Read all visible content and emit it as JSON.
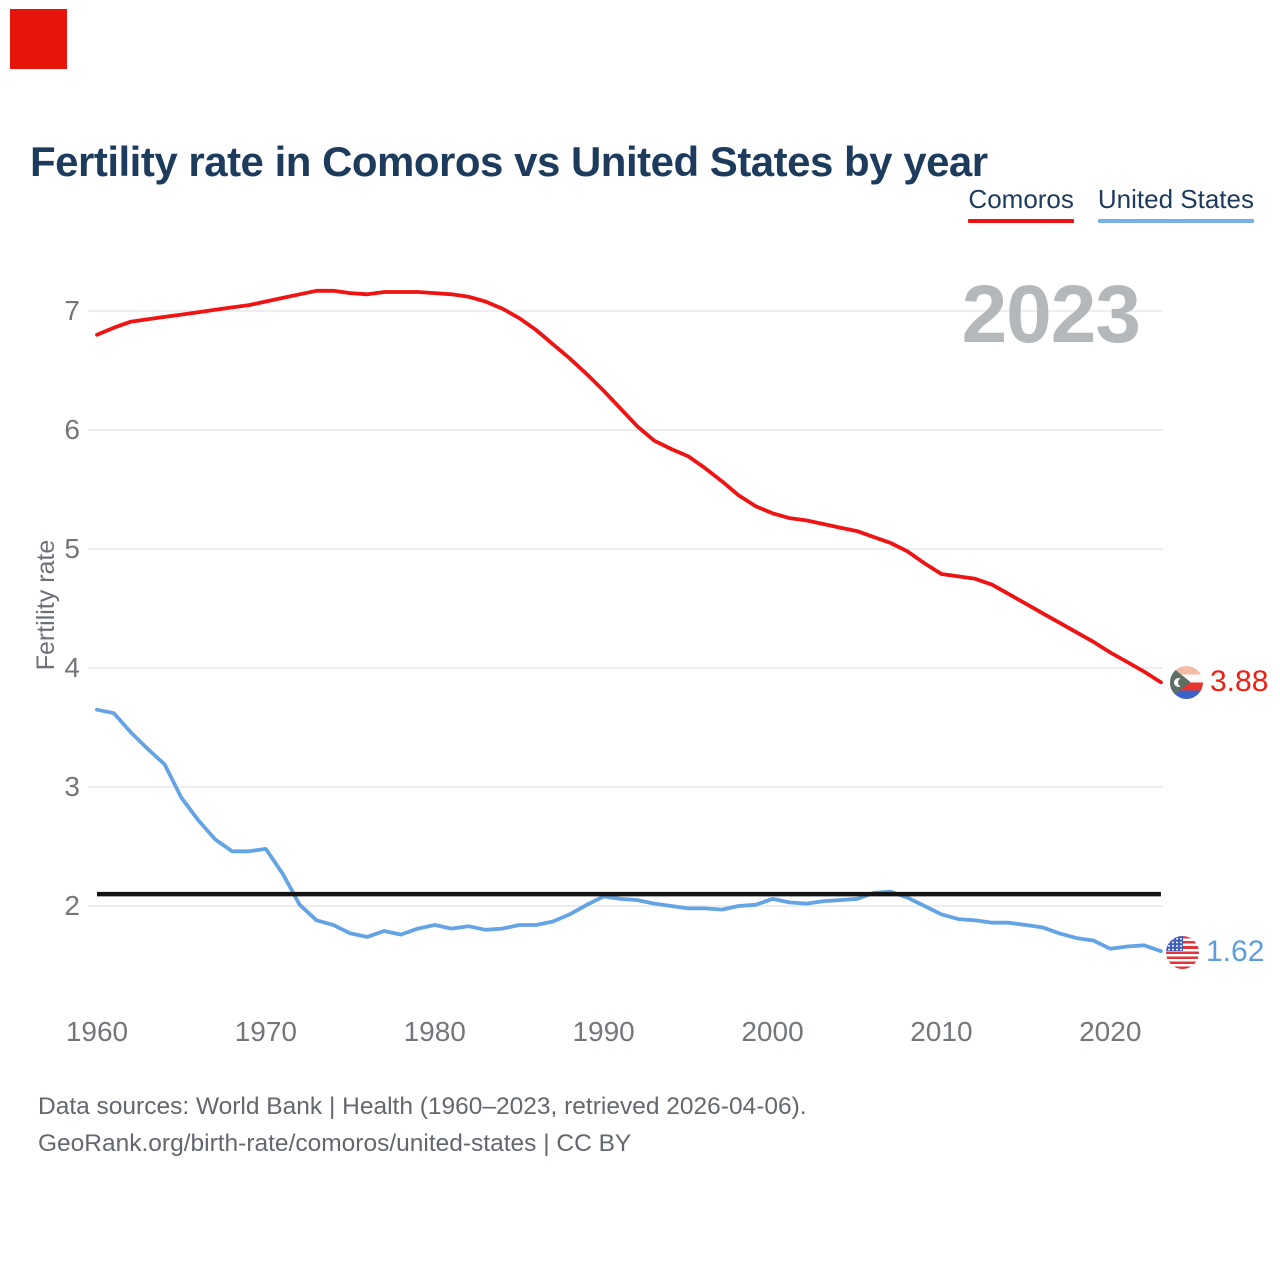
{
  "page": {
    "title": "Fertility rate in Comoros vs United States by year",
    "watermark_year": "2023",
    "footer_line1": "Data sources: World Bank | Health (1960–2023, retrieved 2026-04-06).",
    "footer_line2": "GeoRank.org/birth-rate/comoros/united-states | CC BY",
    "logo_color": "#e8150d"
  },
  "legend": [
    {
      "label": "Comoros",
      "color": "#ee1310"
    },
    {
      "label": "United States",
      "color": "#77b1e8"
    }
  ],
  "end_labels": [
    {
      "series": "Comoros",
      "value": "3.88",
      "color": "#ee2011"
    },
    {
      "series": "United States",
      "value": "1.62",
      "color": "#5b9ede"
    }
  ],
  "chart_data": {
    "type": "line",
    "title": "Fertility rate in Comoros vs United States by year",
    "xlabel": "",
    "ylabel": "Fertility rate",
    "grid": true,
    "legend_position": "top-right",
    "xlim": [
      1960,
      2023
    ],
    "ylim": [
      1.45,
      7.45
    ],
    "xticks": [
      1960,
      1970,
      1980,
      1990,
      2000,
      2010,
      2020
    ],
    "yticks": [
      7,
      6,
      5,
      4,
      3,
      2
    ],
    "reference_line": {
      "value": 2.1,
      "color": "#141414",
      "meaning": "replacement level"
    },
    "x": [
      1960,
      1961,
      1962,
      1963,
      1964,
      1965,
      1966,
      1967,
      1968,
      1969,
      1970,
      1971,
      1972,
      1973,
      1974,
      1975,
      1976,
      1977,
      1978,
      1979,
      1980,
      1981,
      1982,
      1983,
      1984,
      1985,
      1986,
      1987,
      1988,
      1989,
      1990,
      1991,
      1992,
      1993,
      1994,
      1995,
      1996,
      1997,
      1998,
      1999,
      2000,
      2001,
      2002,
      2003,
      2004,
      2005,
      2006,
      2007,
      2008,
      2009,
      2010,
      2011,
      2012,
      2013,
      2014,
      2015,
      2016,
      2017,
      2018,
      2019,
      2020,
      2021,
      2022,
      2023
    ],
    "series": [
      {
        "name": "Comoros",
        "color": "#ee1413",
        "end_value": 3.88,
        "values": [
          6.8,
          6.86,
          6.91,
          6.93,
          6.95,
          6.97,
          6.99,
          7.01,
          7.03,
          7.05,
          7.08,
          7.11,
          7.14,
          7.17,
          7.17,
          7.15,
          7.14,
          7.16,
          7.16,
          7.16,
          7.15,
          7.14,
          7.12,
          7.08,
          7.02,
          6.94,
          6.84,
          6.72,
          6.6,
          6.47,
          6.33,
          6.18,
          6.03,
          5.91,
          5.84,
          5.78,
          5.68,
          5.57,
          5.45,
          5.36,
          5.3,
          5.26,
          5.24,
          5.21,
          5.18,
          5.15,
          5.1,
          5.05,
          4.98,
          4.88,
          4.79,
          4.77,
          4.75,
          4.7,
          4.62,
          4.54,
          4.46,
          4.38,
          4.3,
          4.22,
          4.13,
          4.05,
          3.97,
          3.88
        ]
      },
      {
        "name": "United States",
        "color": "#64a3e4",
        "end_value": 1.62,
        "values": [
          3.65,
          3.62,
          3.46,
          3.32,
          3.19,
          2.91,
          2.72,
          2.56,
          2.46,
          2.46,
          2.48,
          2.27,
          2.01,
          1.88,
          1.84,
          1.77,
          1.74,
          1.79,
          1.76,
          1.81,
          1.84,
          1.81,
          1.83,
          1.8,
          1.81,
          1.84,
          1.84,
          1.87,
          1.93,
          2.01,
          2.08,
          2.06,
          2.05,
          2.02,
          2.0,
          1.98,
          1.98,
          1.97,
          2.0,
          2.01,
          2.06,
          2.03,
          2.02,
          2.04,
          2.05,
          2.06,
          2.11,
          2.12,
          2.07,
          2.0,
          1.93,
          1.89,
          1.88,
          1.86,
          1.86,
          1.84,
          1.82,
          1.77,
          1.73,
          1.71,
          1.64,
          1.66,
          1.67,
          1.62
        ]
      }
    ]
  }
}
